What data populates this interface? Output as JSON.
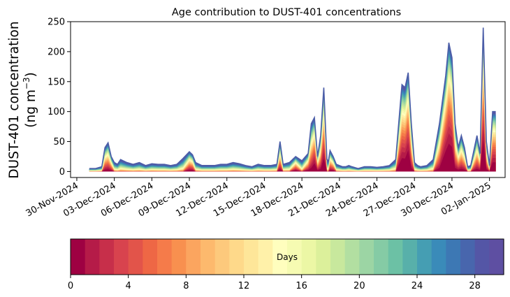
{
  "chart_data": {
    "type": "area",
    "title": "Age contribution to DUST-401 concentrations",
    "ylabel_line1": "DUST-401 concentration",
    "ylabel_line2": "(ng m",
    "ylabel_sup": "−3",
    "ylabel_close": ")",
    "xlabel": "",
    "ylim": [
      -10,
      250
    ],
    "yticks": [
      0,
      50,
      100,
      150,
      200,
      250
    ],
    "xlim": [
      "2024-11-29T12:00",
      "2025-01-03T06:00"
    ],
    "xticks": [
      "2024-11-30",
      "2024-12-03",
      "2024-12-06",
      "2024-12-09",
      "2024-12-12",
      "2024-12-15",
      "2024-12-18",
      "2024-12-21",
      "2024-12-24",
      "2024-12-27",
      "2024-12-30",
      "2025-01-02"
    ],
    "xtick_labels": [
      "30-Nov-2024",
      "03-Dec-2024",
      "06-Dec-2024",
      "09-Dec-2024",
      "12-Dec-2024",
      "15-Dec-2024",
      "18-Dec-2024",
      "21-Dec-2024",
      "24-Dec-2024",
      "27-Dec-2024",
      "30-Dec-2024",
      "02-Jan-2025"
    ],
    "series": [
      {
        "x": [
          "2024-12-01T00:00",
          "2024-12-01T12:00",
          "2024-12-02T00:00",
          "2024-12-02T06:00",
          "2024-12-02T12:00",
          "2024-12-02T18:00",
          "2024-12-03T00:00",
          "2024-12-03T06:00",
          "2024-12-03T12:00",
          "2024-12-04T00:00",
          "2024-12-04T12:00",
          "2024-12-05T00:00",
          "2024-12-05T12:00",
          "2024-12-06T00:00",
          "2024-12-06T12:00",
          "2024-12-07T00:00",
          "2024-12-07T12:00",
          "2024-12-08T00:00",
          "2024-12-08T12:00",
          "2024-12-09T00:00",
          "2024-12-09T06:00",
          "2024-12-09T12:00",
          "2024-12-10T00:00",
          "2024-12-10T12:00",
          "2024-12-11T00:00",
          "2024-12-11T12:00",
          "2024-12-12T00:00",
          "2024-12-12T12:00",
          "2024-12-13T00:00",
          "2024-12-13T12:00",
          "2024-12-14T00:00",
          "2024-12-14T12:00",
          "2024-12-15T00:00",
          "2024-12-15T12:00",
          "2024-12-16T00:00",
          "2024-12-16T06:00",
          "2024-12-16T12:00",
          "2024-12-17T00:00",
          "2024-12-17T12:00",
          "2024-12-18T00:00",
          "2024-12-18T12:00",
          "2024-12-18T18:00",
          "2024-12-19T00:00",
          "2024-12-19T06:00",
          "2024-12-19T12:00",
          "2024-12-19T18:00",
          "2024-12-20T00:00",
          "2024-12-20T03:00",
          "2024-12-20T06:00",
          "2024-12-20T12:00",
          "2024-12-20T18:00",
          "2024-12-21T00:00",
          "2024-12-21T06:00",
          "2024-12-21T12:00",
          "2024-12-21T18:00",
          "2024-12-22T00:00",
          "2024-12-22T12:00",
          "2024-12-23T00:00",
          "2024-12-23T12:00",
          "2024-12-24T00:00",
          "2024-12-24T12:00",
          "2024-12-25T00:00",
          "2024-12-25T12:00",
          "2024-12-26T00:00",
          "2024-12-26T06:00",
          "2024-12-26T12:00",
          "2024-12-26T18:00",
          "2024-12-27T00:00",
          "2024-12-27T06:00",
          "2024-12-27T12:00",
          "2024-12-28T00:00",
          "2024-12-28T12:00",
          "2024-12-29T00:00",
          "2024-12-29T12:00",
          "2024-12-29T18:00",
          "2024-12-30T00:00",
          "2024-12-30T06:00",
          "2024-12-30T12:00",
          "2024-12-30T18:00",
          "2024-12-31T00:00",
          "2024-12-31T06:00",
          "2024-12-31T12:00",
          "2025-01-01T00:00",
          "2025-01-01T06:00",
          "2025-01-01T12:00",
          "2025-01-01T18:00",
          "2025-01-02T00:00",
          "2025-01-02T06:00",
          "2025-01-02T12:00"
        ],
        "total": [
          5,
          5,
          8,
          40,
          48,
          25,
          15,
          12,
          20,
          15,
          12,
          15,
          10,
          13,
          12,
          12,
          10,
          12,
          22,
          33,
          28,
          15,
          10,
          10,
          10,
          12,
          12,
          15,
          13,
          10,
          8,
          12,
          10,
          10,
          12,
          50,
          12,
          15,
          25,
          18,
          30,
          80,
          90,
          25,
          60,
          140,
          20,
          18,
          35,
          25,
          12,
          10,
          8,
          8,
          10,
          8,
          5,
          8,
          8,
          7,
          8,
          10,
          20,
          145,
          140,
          165,
          80,
          15,
          10,
          8,
          10,
          20,
          80,
          160,
          215,
          190,
          80,
          40,
          60,
          40,
          8,
          10,
          60,
          30,
          240,
          50,
          10,
          100,
          100
        ]
      }
    ],
    "age_layers_note": "",
    "colorbar": {
      "label": "Days",
      "min": 0,
      "max": 30,
      "bins": 30,
      "ticks": [
        0,
        4,
        8,
        12,
        16,
        20,
        24,
        28
      ]
    }
  }
}
